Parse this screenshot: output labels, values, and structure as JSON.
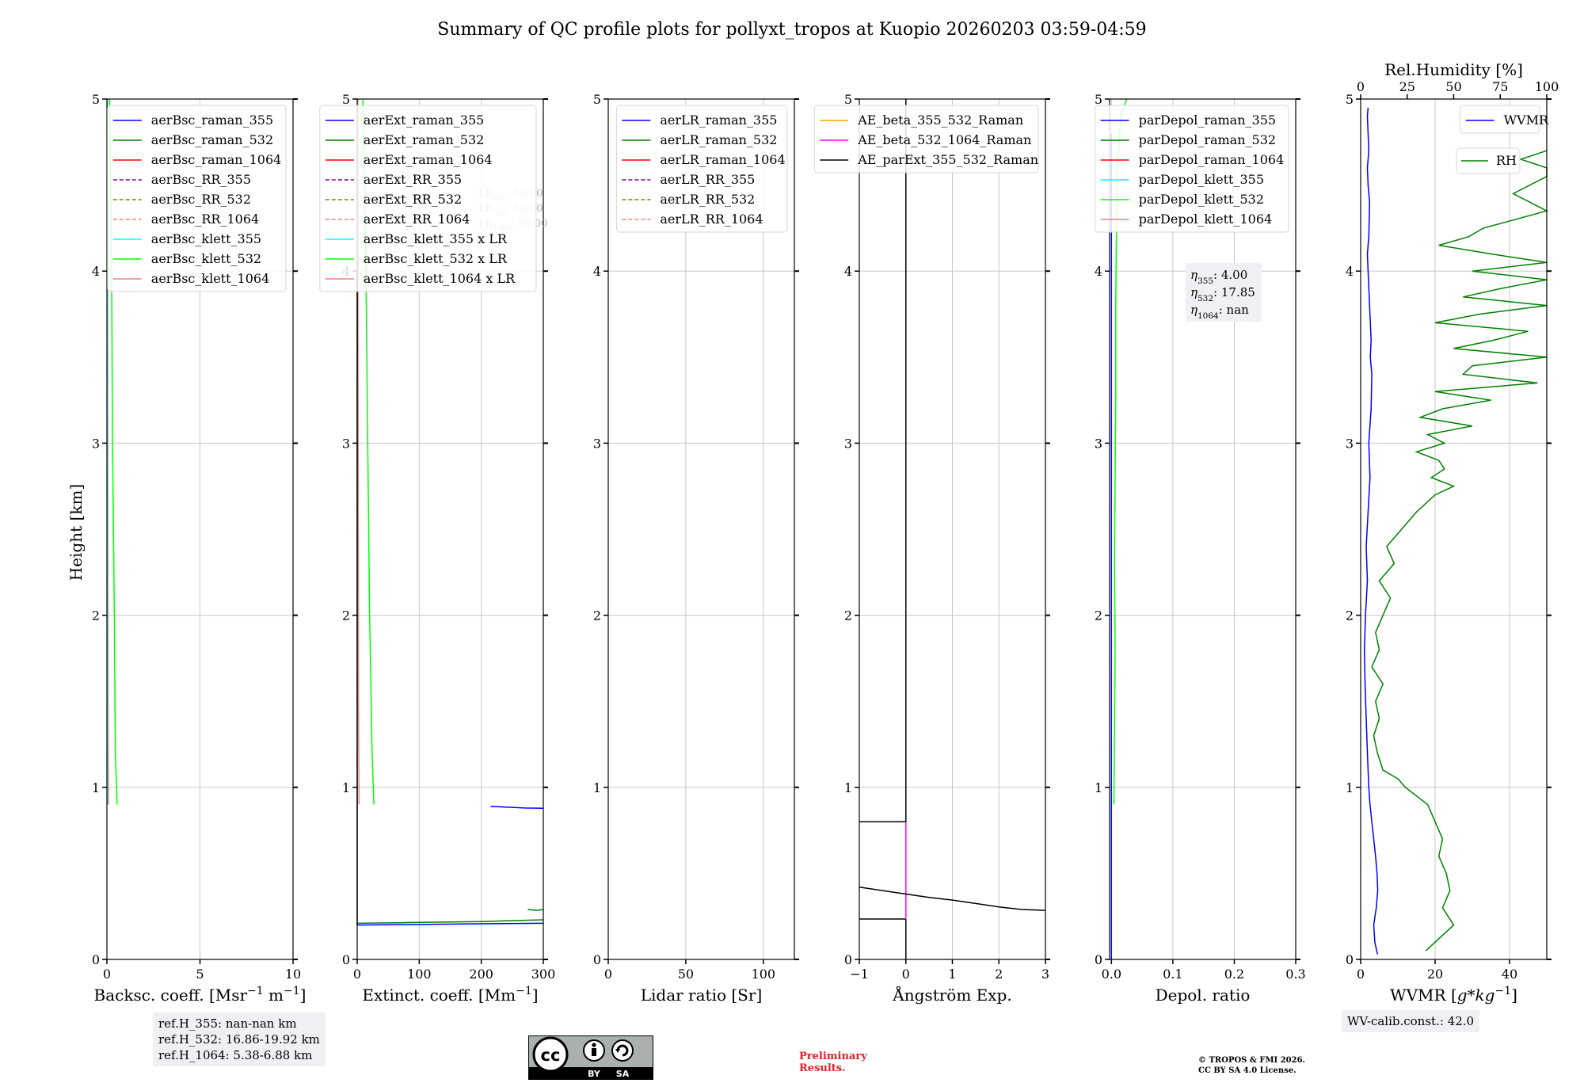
{
  "title": "Summary of QC profile plots for pollyxt_tropos at Kuopio 20260203 03:59-04:59",
  "ylabel": "Height [km]",
  "colors": {
    "blue": "#0000ff",
    "green": "#008000",
    "red": "#ff0000",
    "purple": "#800080",
    "olive": "#808000",
    "salmon": "#fa8072",
    "cyan": "#00ffff",
    "lime": "#00ff00",
    "lightcoral": "#f08080",
    "orange": "#ffa500",
    "magenta": "#ff00ff",
    "black": "#000000"
  },
  "chart_data": [
    {
      "type": "line",
      "xlabel": "Backsc. coeff. [Msr$^{-1}$ m$^{-1}$]",
      "xlabel_parts": [
        "Backsc. coeff. [Msr",
        "−1",
        " m",
        "−1",
        "]"
      ],
      "xlim": [
        0,
        10
      ],
      "xticks": [
        0,
        5,
        10
      ],
      "ylim": [
        0,
        5
      ],
      "yticks": [
        0,
        1,
        2,
        3,
        4,
        5
      ],
      "legend_loc": "top-right",
      "legend": [
        {
          "label": "aerBsc_raman_355",
          "color": "blue",
          "dash": false
        },
        {
          "label": "aerBsc_raman_532",
          "color": "green",
          "dash": false
        },
        {
          "label": "aerBsc_raman_1064",
          "color": "red",
          "dash": false
        },
        {
          "label": "aerBsc_RR_355",
          "color": "purple",
          "dash": true
        },
        {
          "label": "aerBsc_RR_532",
          "color": "olive",
          "dash": true
        },
        {
          "label": "aerBsc_RR_1064",
          "color": "salmon",
          "dash": true
        },
        {
          "label": "aerBsc_klett_355",
          "color": "cyan",
          "dash": false
        },
        {
          "label": "aerBsc_klett_532",
          "color": "lime",
          "dash": false
        },
        {
          "label": "aerBsc_klett_1064",
          "color": "lightcoral",
          "dash": false
        }
      ],
      "series": [
        {
          "name": "aerBsc_klett_532",
          "color": "lime",
          "x": [
            0.55,
            0.45,
            0.4,
            0.3,
            0.25,
            0.2,
            0.15
          ],
          "y": [
            0.9,
            1.2,
            2.0,
            3.0,
            4.0,
            4.6,
            5.0
          ]
        },
        {
          "name": "aerBsc_klett_1064",
          "color": "lightcoral",
          "x": [
            0.08,
            0.06,
            0.05,
            0.04,
            0.03
          ],
          "y": [
            0.9,
            1.5,
            2.5,
            3.8,
            5.0
          ]
        },
        {
          "name": "aerBsc_klett_355",
          "color": "cyan",
          "x": [
            0.02,
            0.02
          ],
          "y": [
            0.9,
            5.0
          ]
        }
      ],
      "text_boxes": [
        {
          "lines": [
            "ref.H_355: nan-nan km",
            "ref.H_532: 16.86-19.92 km",
            "ref.H_1064: 5.38-6.88 km"
          ]
        }
      ]
    },
    {
      "type": "line",
      "xlabel": "Extinct. coeff. [Mm$^{-1}$]",
      "xlabel_parts": [
        "Extinct. coeff. [Mm",
        "−1",
        "]"
      ],
      "xlim": [
        0,
        300
      ],
      "xticks": [
        0,
        100,
        200,
        300
      ],
      "ylim": [
        0,
        5
      ],
      "yticks": [
        0,
        1,
        2,
        3,
        4,
        5
      ],
      "legend_loc": "top-right",
      "legend": [
        {
          "label": "aerExt_raman_355",
          "color": "blue",
          "dash": false
        },
        {
          "label": "aerExt_raman_532",
          "color": "green",
          "dash": false
        },
        {
          "label": "aerExt_raman_1064",
          "color": "red",
          "dash": false
        },
        {
          "label": "aerExt_RR_355",
          "color": "purple",
          "dash": true
        },
        {
          "label": "aerExt_RR_532",
          "color": "olive",
          "dash": true
        },
        {
          "label": "aerExt_RR_1064",
          "color": "salmon",
          "dash": true
        },
        {
          "label": "aerBsc_klett_355 x LR",
          "color": "cyan",
          "dash": false
        },
        {
          "label": "aerBsc_klett_532 x LR",
          "color": "lime",
          "dash": false
        },
        {
          "label": "aerBsc_klett_1064 x LR",
          "color": "lightcoral",
          "dash": false
        }
      ],
      "series": [
        {
          "name": "aerBsc_klett_532 x LR",
          "color": "lime",
          "x": [
            27,
            24,
            20,
            17,
            14,
            12,
            10,
            9
          ],
          "y": [
            0.9,
            1.2,
            2.0,
            3.0,
            4.0,
            4.5,
            4.8,
            5.0
          ]
        },
        {
          "name": "aerBsc_klett_1064 x LR",
          "color": "lightcoral",
          "x": [
            3,
            2,
            1.5,
            1
          ],
          "y": [
            0.9,
            1.5,
            3.0,
            5.0
          ]
        },
        {
          "name": "aerExt_raman_355",
          "color": "blue",
          "x": [
            215,
            240,
            270,
            300
          ],
          "y": [
            0.89,
            0.885,
            0.88,
            0.878
          ]
        },
        {
          "name": "aerExt_raman_355_low",
          "color": "blue",
          "x": [
            0,
            100,
            200,
            300
          ],
          "y": [
            0.2,
            0.203,
            0.207,
            0.21
          ]
        },
        {
          "name": "aerExt_raman_532",
          "color": "green",
          "x": [
            0,
            100,
            200,
            300
          ],
          "y": [
            0.21,
            0.215,
            0.22,
            0.23
          ]
        },
        {
          "name": "aerExt_raman_532_peak",
          "color": "green",
          "x": [
            275,
            290,
            300
          ],
          "y": [
            0.29,
            0.285,
            0.29
          ]
        },
        {
          "name": "black_edge",
          "color": "black",
          "x": [
            0,
            0
          ],
          "y": [
            0.2,
            4.0
          ]
        }
      ],
      "faint_labels": [
        "LR$_{355}$: 50.00",
        "LR$_{532}$: 50.00",
        "LR$_{1064}$: 50.00"
      ],
      "faint_label_parts": [
        [
          "LR",
          "355",
          ": 50.00"
        ],
        [
          "LR",
          "532",
          ": 50.00"
        ],
        [
          "LR",
          "1064",
          ": 50.00"
        ]
      ]
    },
    {
      "type": "line",
      "xlabel": "Lidar ratio [Sr]",
      "xlim": [
        0,
        120
      ],
      "xticks": [
        0,
        50,
        100
      ],
      "ylim": [
        0,
        5
      ],
      "yticks": [
        0,
        1,
        2,
        3,
        4,
        5
      ],
      "legend_loc": "top-right",
      "legend": [
        {
          "label": "aerLR_raman_355",
          "color": "blue",
          "dash": false
        },
        {
          "label": "aerLR_raman_532",
          "color": "green",
          "dash": false
        },
        {
          "label": "aerLR_raman_1064",
          "color": "red",
          "dash": false
        },
        {
          "label": "aerLR_RR_355",
          "color": "purple",
          "dash": true
        },
        {
          "label": "aerLR_RR_532",
          "color": "olive",
          "dash": true
        },
        {
          "label": "aerLR_RR_1064",
          "color": "salmon",
          "dash": true
        }
      ],
      "series": []
    },
    {
      "type": "line",
      "xlabel": "Ångström Exp.",
      "xlim": [
        -1,
        3
      ],
      "xticks": [
        -1,
        0,
        1,
        2,
        3
      ],
      "xtick_labels": [
        "−1",
        "0",
        "1",
        "2",
        "3"
      ],
      "ylim": [
        0,
        5
      ],
      "yticks": [
        0,
        1,
        2,
        3,
        4,
        5
      ],
      "legend_loc": "top-right",
      "legend": [
        {
          "label": "AE_beta_355_532_Raman",
          "color": "orange",
          "dash": false
        },
        {
          "label": "AE_beta_532_1064_Raman",
          "color": "magenta",
          "dash": false
        },
        {
          "label": "AE_parExt_355_532_Raman",
          "color": "black",
          "dash": false
        }
      ],
      "series": [
        {
          "name": "AE_beta_532_1064_Raman",
          "color": "magenta",
          "x": [
            0,
            0
          ],
          "y": [
            0.24,
            0.8
          ]
        },
        {
          "name": "AE_parExt_355_532_Raman",
          "color": "black",
          "x": [
            -1,
            -0.5,
            0,
            0.5,
            1,
            1.5,
            2,
            2.5,
            3
          ],
          "y": [
            0.42,
            0.4,
            0.38,
            0.36,
            0.345,
            0.325,
            0.305,
            0.29,
            0.285
          ]
        },
        {
          "name": "AE_vertical",
          "color": "black",
          "x": [
            0,
            0
          ],
          "y": [
            0.8,
            5.0
          ]
        },
        {
          "name": "AE_step_upper",
          "color": "black",
          "x": [
            -1,
            0
          ],
          "y": [
            0.8,
            0.8
          ]
        },
        {
          "name": "AE_step_lower",
          "color": "black",
          "x": [
            -1,
            0
          ],
          "y": [
            0.235,
            0.235
          ]
        },
        {
          "name": "AE_lower_vertical",
          "color": "black",
          "x": [
            0,
            0
          ],
          "y": [
            0.0,
            0.235
          ]
        }
      ]
    },
    {
      "type": "line",
      "xlabel": "Depol. ratio",
      "xlim": [
        -0.003,
        0.3
      ],
      "xticks": [
        0.0,
        0.1,
        0.2,
        0.3
      ],
      "xtick_labels": [
        "0.0",
        "0.1",
        "0.2",
        "0.3"
      ],
      "ylim": [
        0,
        5
      ],
      "yticks": [
        0,
        1,
        2,
        3,
        4,
        5
      ],
      "legend_loc": "top-right",
      "legend": [
        {
          "label": "parDepol_raman_355",
          "color": "blue",
          "dash": false
        },
        {
          "label": "parDepol_raman_532",
          "color": "green",
          "dash": false
        },
        {
          "label": "parDepol_raman_1064",
          "color": "red",
          "dash": false
        },
        {
          "label": "parDepol_klett_355",
          "color": "cyan",
          "dash": false
        },
        {
          "label": "parDepol_klett_532",
          "color": "lime",
          "dash": false
        },
        {
          "label": "parDepol_klett_1064",
          "color": "lightcoral",
          "dash": false
        }
      ],
      "series": [
        {
          "name": "parDepol_klett_532",
          "color": "lime",
          "x": [
            0.004,
            0.005,
            0.006,
            0.005,
            0.006,
            0.007,
            0.007,
            0.008,
            0.01,
            0.015,
            0.025
          ],
          "y": [
            0.9,
            1.3,
            1.8,
            2.3,
            2.8,
            3.3,
            3.8,
            4.2,
            4.6,
            4.9,
            5.0
          ]
        },
        {
          "name": "parDepol_blue",
          "color": "blue",
          "x": [
            0.0,
            0.0
          ],
          "y": [
            0.0,
            4.8
          ]
        }
      ],
      "eta_box": {
        "lines": [
          [
            "η",
            "355",
            ": 4.00"
          ],
          [
            "η",
            "532",
            ": 17.85"
          ],
          [
            "η",
            "1064",
            ": nan"
          ]
        ]
      }
    },
    {
      "type": "line",
      "xlabel": "WVMR [$g*kg^{-1}$]",
      "xlabel_parts": [
        "WVMR [",
        "g*kg",
        "−1",
        "]"
      ],
      "xlim": [
        0,
        50
      ],
      "xticks": [
        0,
        20,
        40
      ],
      "ylim": [
        0,
        5
      ],
      "yticks": [
        0,
        1,
        2,
        3,
        4,
        5
      ],
      "top_axis": {
        "label": "Rel.Humidity [%]",
        "lim": [
          0,
          100
        ],
        "ticks": [
          0,
          25,
          50,
          75,
          100
        ]
      },
      "legend": [
        {
          "label": "WVMR",
          "color": "blue",
          "dash": false,
          "loc": "top-right"
        },
        {
          "label": "RH",
          "color": "green",
          "dash": false,
          "loc": "upper-right-second"
        }
      ],
      "wvmr_series": {
        "name": "WVMR",
        "color": "blue",
        "x": [
          4.5,
          3.8,
          3.5,
          4.2,
          4.6,
          4.4,
          4.0,
          3.5,
          3.0,
          2.5,
          2.2,
          1.8,
          1.5,
          1.2,
          1.0,
          1.3,
          1.8,
          1.5,
          2.0,
          2.5,
          2.2,
          2.8,
          3.0,
          2.6,
          2.8,
          2.4,
          2.0,
          1.8,
          2.2,
          2.4,
          2.0,
          1.8,
          2.2,
          1.8,
          2.0
        ],
        "y": [
          0.03,
          0.1,
          0.2,
          0.3,
          0.4,
          0.5,
          0.6,
          0.7,
          0.8,
          0.9,
          1.0,
          1.2,
          1.4,
          1.6,
          1.8,
          2.0,
          2.2,
          2.4,
          2.6,
          2.8,
          3.0,
          3.2,
          3.4,
          3.5,
          3.6,
          3.8,
          4.0,
          4.1,
          4.2,
          4.4,
          4.5,
          4.6,
          4.7,
          4.9,
          4.95
        ]
      },
      "rh_series": {
        "name": "RH",
        "color": "green",
        "rh": [
          35,
          42,
          50,
          44,
          48,
          46,
          42,
          44,
          40,
          36,
          30,
          24,
          20,
          12,
          9,
          7,
          10,
          8,
          12,
          6,
          10,
          8,
          12,
          16,
          10,
          18,
          14,
          22,
          30,
          40,
          50,
          38,
          45,
          42,
          30,
          45,
          36,
          60,
          32,
          44,
          70,
          40,
          95,
          55,
          60,
          100,
          50,
          72,
          90,
          40,
          64,
          100,
          55,
          76,
          100,
          60,
          100,
          70,
          42,
          58,
          66,
          100,
          82,
          100,
          100,
          86,
          100
        ],
        "y": [
          0.05,
          0.12,
          0.2,
          0.3,
          0.4,
          0.5,
          0.6,
          0.7,
          0.8,
          0.9,
          0.95,
          1.0,
          1.05,
          1.1,
          1.2,
          1.3,
          1.4,
          1.5,
          1.6,
          1.7,
          1.8,
          1.9,
          2.0,
          2.1,
          2.2,
          2.3,
          2.4,
          2.5,
          2.6,
          2.7,
          2.75,
          2.8,
          2.85,
          2.9,
          2.95,
          3.0,
          3.05,
          3.1,
          3.15,
          3.2,
          3.25,
          3.3,
          3.35,
          3.4,
          3.45,
          3.5,
          3.55,
          3.6,
          3.65,
          3.7,
          3.75,
          3.8,
          3.85,
          3.9,
          3.95,
          4.0,
          4.05,
          4.1,
          4.15,
          4.2,
          4.25,
          4.35,
          4.45,
          4.55,
          4.6,
          4.65,
          4.7
        ]
      },
      "text_boxes": [
        {
          "lines": [
            "WV-calib.const.: 42.0"
          ]
        }
      ]
    }
  ],
  "footer": {
    "preliminary": [
      "Preliminary",
      "Results."
    ],
    "copyright": [
      "© TROPOS & FMI 2026.",
      "CC BY SA 4.0 License."
    ],
    "license_badge": {
      "by": "BY",
      "sa": "SA"
    }
  }
}
